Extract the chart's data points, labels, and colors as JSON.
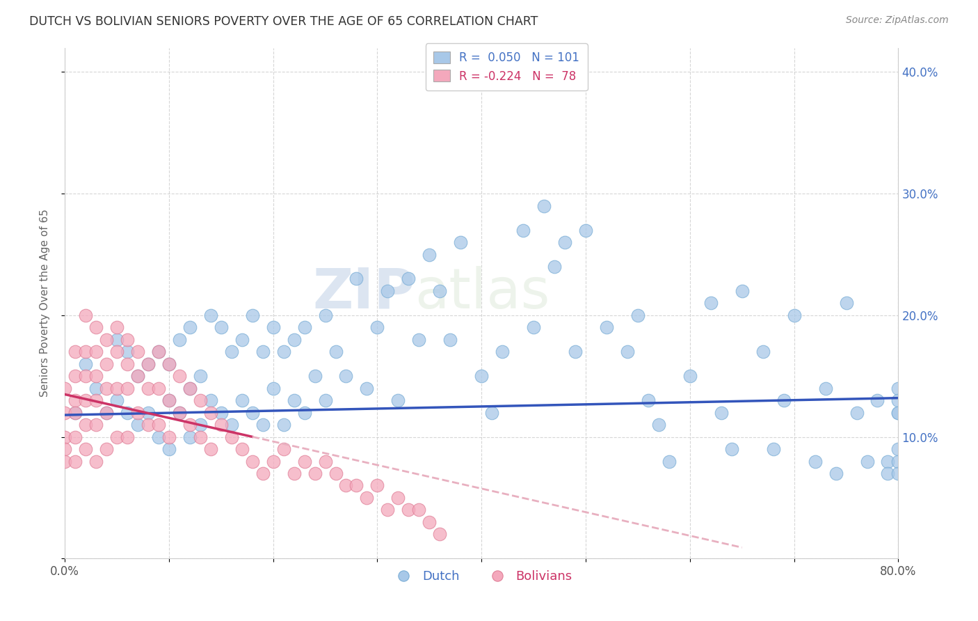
{
  "title": "DUTCH VS BOLIVIAN SENIORS POVERTY OVER THE AGE OF 65 CORRELATION CHART",
  "source": "Source: ZipAtlas.com",
  "xlabel": "",
  "ylabel": "Seniors Poverty Over the Age of 65",
  "xlim": [
    0.0,
    0.8
  ],
  "ylim": [
    0.0,
    0.42
  ],
  "xticks": [
    0.0,
    0.1,
    0.2,
    0.3,
    0.4,
    0.5,
    0.6,
    0.7,
    0.8
  ],
  "yticks": [
    0.0,
    0.1,
    0.2,
    0.3,
    0.4
  ],
  "dutch_color": "#a8c8e8",
  "bolivian_color": "#f4a8bc",
  "dutch_line_color": "#3355bb",
  "bolivian_line_solid_color": "#cc3366",
  "bolivian_line_dashed_color": "#e8b0c0",
  "legend_dutch_label": "Dutch",
  "legend_bolivian_label": "Bolivians",
  "dutch_R": "0.050",
  "dutch_N": "101",
  "bolivian_R": "-0.224",
  "bolivian_N": "78",
  "watermark": "ZIPatlas",
  "background_color": "#ffffff",
  "grid_color": "#cccccc",
  "dutch_scatter_x": [
    0.01,
    0.02,
    0.03,
    0.04,
    0.05,
    0.05,
    0.06,
    0.06,
    0.07,
    0.07,
    0.08,
    0.08,
    0.09,
    0.09,
    0.1,
    0.1,
    0.1,
    0.11,
    0.11,
    0.12,
    0.12,
    0.12,
    0.13,
    0.13,
    0.14,
    0.14,
    0.15,
    0.15,
    0.16,
    0.16,
    0.17,
    0.17,
    0.18,
    0.18,
    0.19,
    0.19,
    0.2,
    0.2,
    0.21,
    0.21,
    0.22,
    0.22,
    0.23,
    0.23,
    0.24,
    0.25,
    0.25,
    0.26,
    0.27,
    0.28,
    0.29,
    0.3,
    0.31,
    0.32,
    0.33,
    0.34,
    0.35,
    0.36,
    0.37,
    0.38,
    0.4,
    0.41,
    0.42,
    0.44,
    0.45,
    0.46,
    0.47,
    0.48,
    0.49,
    0.5,
    0.52,
    0.54,
    0.55,
    0.56,
    0.57,
    0.58,
    0.6,
    0.62,
    0.63,
    0.64,
    0.65,
    0.67,
    0.68,
    0.69,
    0.7,
    0.72,
    0.73,
    0.74,
    0.75,
    0.76,
    0.77,
    0.78,
    0.79,
    0.79,
    0.8,
    0.8,
    0.8,
    0.8,
    0.8,
    0.8,
    0.8
  ],
  "dutch_scatter_y": [
    0.12,
    0.16,
    0.14,
    0.12,
    0.18,
    0.13,
    0.17,
    0.12,
    0.15,
    0.11,
    0.16,
    0.12,
    0.17,
    0.1,
    0.16,
    0.13,
    0.09,
    0.18,
    0.12,
    0.19,
    0.14,
    0.1,
    0.15,
    0.11,
    0.2,
    0.13,
    0.19,
    0.12,
    0.17,
    0.11,
    0.18,
    0.13,
    0.2,
    0.12,
    0.17,
    0.11,
    0.19,
    0.14,
    0.17,
    0.11,
    0.18,
    0.13,
    0.19,
    0.12,
    0.15,
    0.2,
    0.13,
    0.17,
    0.15,
    0.23,
    0.14,
    0.19,
    0.22,
    0.13,
    0.23,
    0.18,
    0.25,
    0.22,
    0.18,
    0.26,
    0.15,
    0.12,
    0.17,
    0.27,
    0.19,
    0.29,
    0.24,
    0.26,
    0.17,
    0.27,
    0.19,
    0.17,
    0.2,
    0.13,
    0.11,
    0.08,
    0.15,
    0.21,
    0.12,
    0.09,
    0.22,
    0.17,
    0.09,
    0.13,
    0.2,
    0.08,
    0.14,
    0.07,
    0.21,
    0.12,
    0.08,
    0.13,
    0.08,
    0.07,
    0.14,
    0.09,
    0.13,
    0.08,
    0.12,
    0.07,
    0.12
  ],
  "bolivian_scatter_x": [
    0.0,
    0.0,
    0.0,
    0.0,
    0.0,
    0.01,
    0.01,
    0.01,
    0.01,
    0.01,
    0.01,
    0.02,
    0.02,
    0.02,
    0.02,
    0.02,
    0.02,
    0.03,
    0.03,
    0.03,
    0.03,
    0.03,
    0.03,
    0.04,
    0.04,
    0.04,
    0.04,
    0.04,
    0.05,
    0.05,
    0.05,
    0.05,
    0.06,
    0.06,
    0.06,
    0.06,
    0.07,
    0.07,
    0.07,
    0.08,
    0.08,
    0.08,
    0.09,
    0.09,
    0.09,
    0.1,
    0.1,
    0.1,
    0.11,
    0.11,
    0.12,
    0.12,
    0.13,
    0.13,
    0.14,
    0.14,
    0.15,
    0.16,
    0.17,
    0.18,
    0.19,
    0.2,
    0.21,
    0.22,
    0.23,
    0.24,
    0.25,
    0.26,
    0.27,
    0.28,
    0.29,
    0.3,
    0.31,
    0.32,
    0.33,
    0.34,
    0.35,
    0.36
  ],
  "bolivian_scatter_y": [
    0.14,
    0.12,
    0.1,
    0.09,
    0.08,
    0.17,
    0.15,
    0.13,
    0.12,
    0.1,
    0.08,
    0.2,
    0.17,
    0.15,
    0.13,
    0.11,
    0.09,
    0.19,
    0.17,
    0.15,
    0.13,
    0.11,
    0.08,
    0.18,
    0.16,
    0.14,
    0.12,
    0.09,
    0.19,
    0.17,
    0.14,
    0.1,
    0.18,
    0.16,
    0.14,
    0.1,
    0.17,
    0.15,
    0.12,
    0.16,
    0.14,
    0.11,
    0.17,
    0.14,
    0.11,
    0.16,
    0.13,
    0.1,
    0.15,
    0.12,
    0.14,
    0.11,
    0.13,
    0.1,
    0.12,
    0.09,
    0.11,
    0.1,
    0.09,
    0.08,
    0.07,
    0.08,
    0.09,
    0.07,
    0.08,
    0.07,
    0.08,
    0.07,
    0.06,
    0.06,
    0.05,
    0.06,
    0.04,
    0.05,
    0.04,
    0.04,
    0.03,
    0.02
  ]
}
